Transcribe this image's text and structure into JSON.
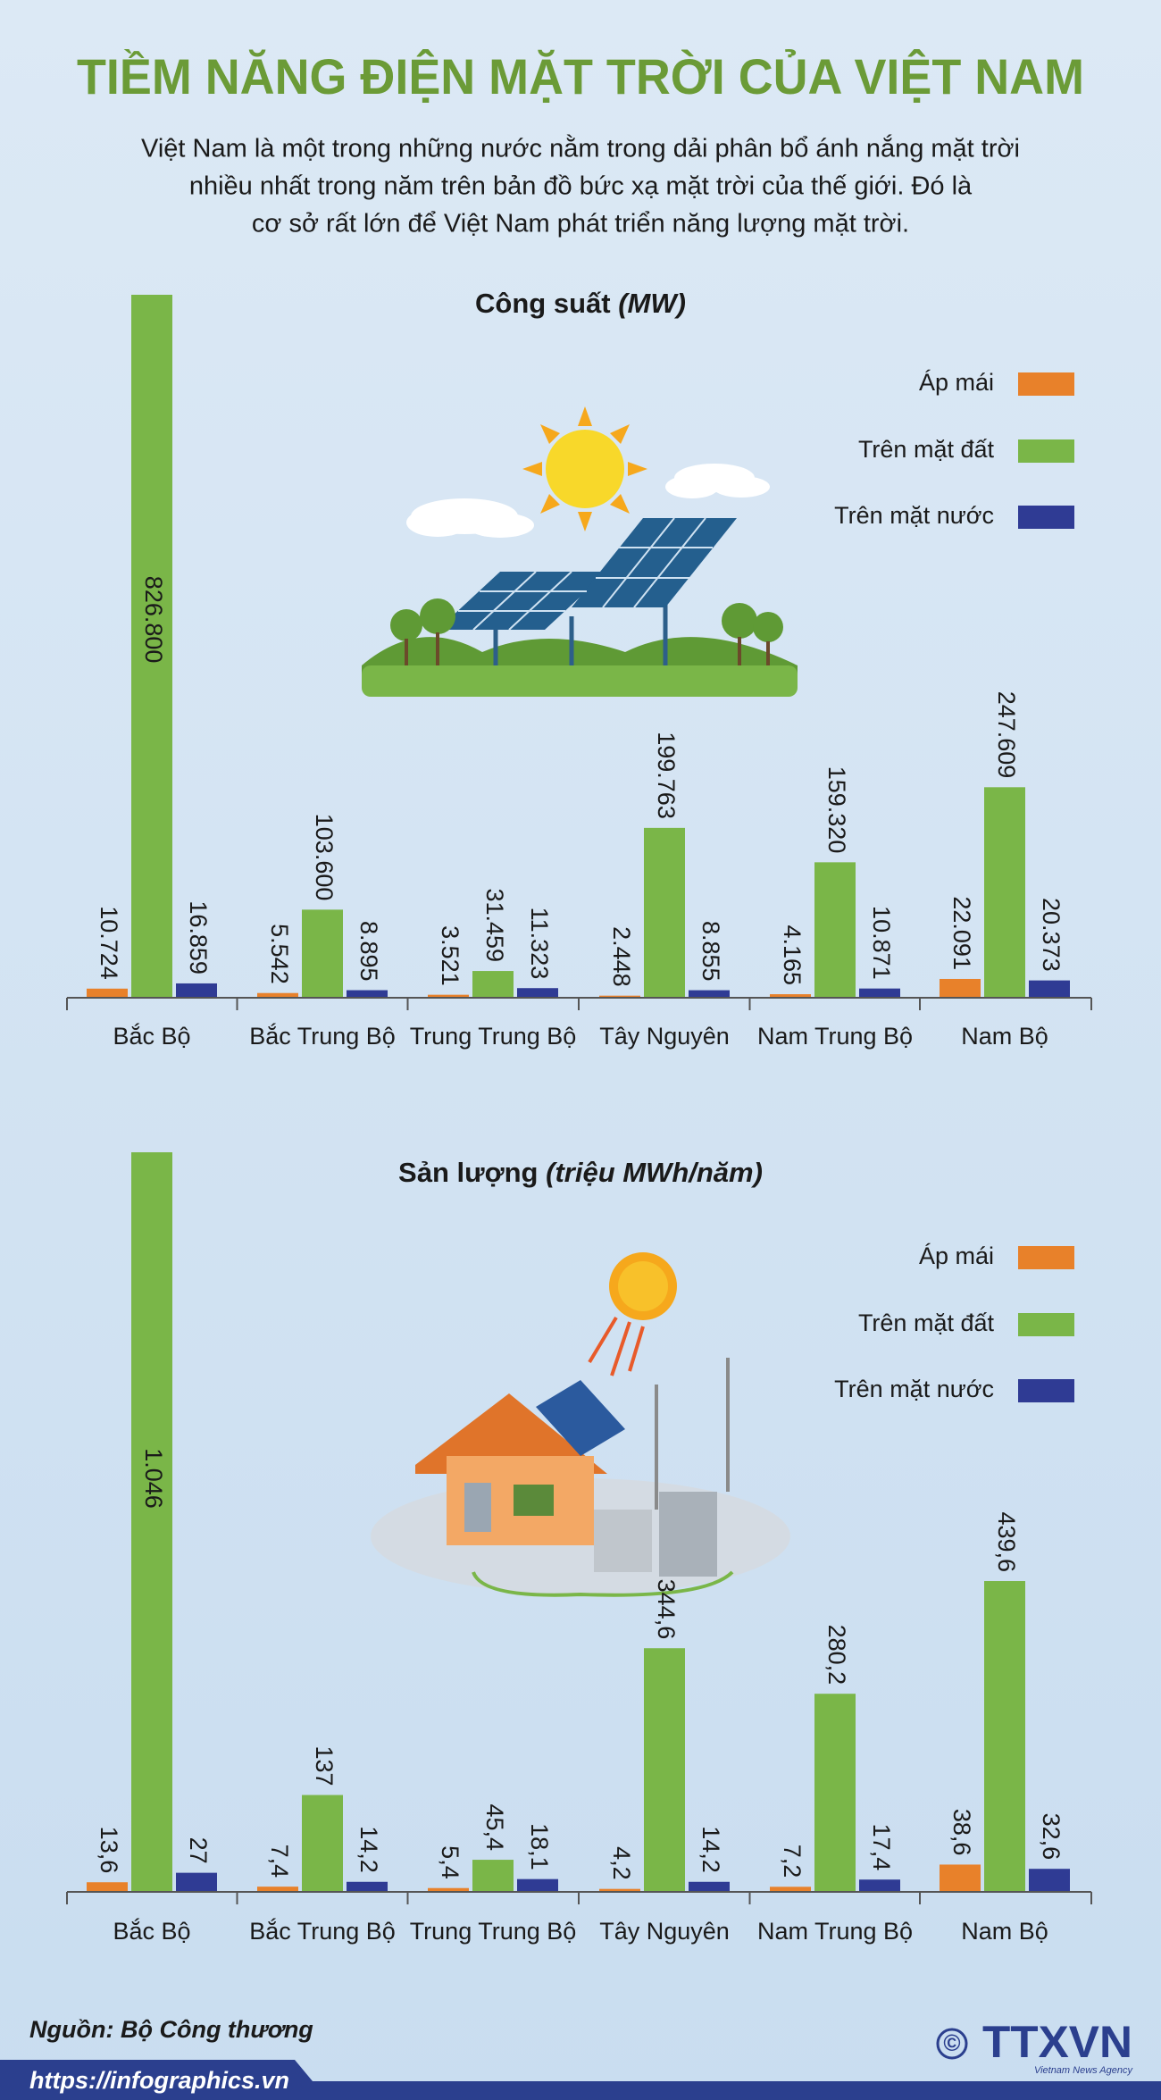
{
  "header": {
    "title": "TIỀM NĂNG ĐIỆN MẶT TRỜI CỦA VIỆT NAM",
    "description": [
      "Việt Nam là một trong những nước nằm trong dải phân bổ ánh nắng mặt trời",
      "nhiều nhất trong năm trên bản đồ bức xạ mặt trời của thế giới. Đó là",
      "cơ sở rất lớn để Việt Nam phát triển năng lượng mặt trời."
    ]
  },
  "chart_data": [
    {
      "type": "bar",
      "title": "Công suất",
      "title_unit": "(MW)",
      "categories": [
        "Bắc Bộ",
        "Bắc Trung Bộ",
        "Trung Trung Bộ",
        "Tây Nguyên",
        "Nam Trung Bộ",
        "Nam Bộ"
      ],
      "series": [
        {
          "name": "Áp mái",
          "color": "#e8812a",
          "values": [
            10724,
            5542,
            3521,
            2448,
            4165,
            22091
          ],
          "value_labels": [
            "10.724",
            "5.542",
            "3.521",
            "2.448",
            "4.165",
            "22.091"
          ]
        },
        {
          "name": "Trên mặt đất",
          "color": "#7ab648",
          "values": [
            826800,
            103600,
            31459,
            199763,
            159320,
            247609
          ],
          "value_labels": [
            "826.800",
            "103.600",
            "31.459",
            "199.763",
            "159.320",
            "247.609"
          ]
        },
        {
          "name": "Trên mặt nước",
          "color": "#2f3b94",
          "values": [
            16859,
            8895,
            11323,
            8855,
            10871,
            20373
          ],
          "value_labels": [
            "16.859",
            "8.895",
            "11.323",
            "8.855",
            "10.871",
            "20.373"
          ]
        }
      ]
    },
    {
      "type": "bar",
      "title": "Sản lượng",
      "title_unit": "(triệu MWh/năm)",
      "categories": [
        "Bắc Bộ",
        "Bắc Trung Bộ",
        "Trung Trung Bộ",
        "Tây Nguyên",
        "Nam Trung Bộ",
        "Nam Bộ"
      ],
      "series": [
        {
          "name": "Áp mái",
          "color": "#e8812a",
          "values": [
            13.6,
            7.4,
            5.4,
            4.2,
            7.2,
            38.6
          ],
          "value_labels": [
            "13,6",
            "7,4",
            "5,4",
            "4,2",
            "7,2",
            "38,6"
          ]
        },
        {
          "name": "Trên mặt đất",
          "color": "#7ab648",
          "values": [
            1046,
            137,
            45.4,
            344.6,
            280.2,
            439.6
          ],
          "value_labels": [
            "1.046",
            "137",
            "45,4",
            "344,6",
            "280,2",
            "439,6"
          ]
        },
        {
          "name": "Trên mặt nước",
          "color": "#2f3b94",
          "values": [
            27,
            14.2,
            18.1,
            14.2,
            17.4,
            32.6
          ],
          "value_labels": [
            "27",
            "14,2",
            "18,1",
            "14,2",
            "17,4",
            "32,6"
          ]
        }
      ]
    }
  ],
  "footer": {
    "source": "Nguồn: Bộ Công thương",
    "url": "https://infographics.vn",
    "copyright": "©",
    "logo": "TTXVN",
    "agency": "Vietnam News Agency"
  }
}
